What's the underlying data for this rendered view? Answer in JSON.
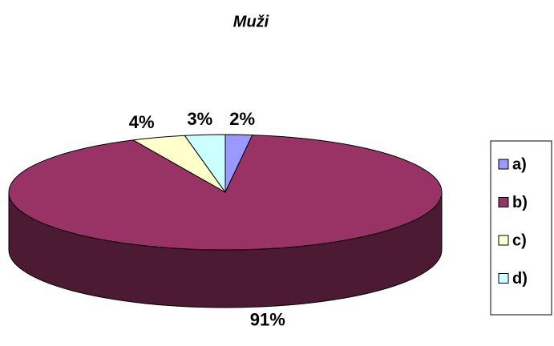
{
  "chart_data": {
    "type": "pie3d",
    "title": "Muži",
    "categories": [
      "a)",
      "b)",
      "c)",
      "d)"
    ],
    "values": [
      2,
      91,
      4,
      3
    ],
    "value_labels": [
      "2%",
      "91%",
      "4%",
      "3%"
    ],
    "colors": [
      "#9999ff",
      "#993366",
      "#ffffcc",
      "#ccffff"
    ],
    "legend": "right"
  }
}
